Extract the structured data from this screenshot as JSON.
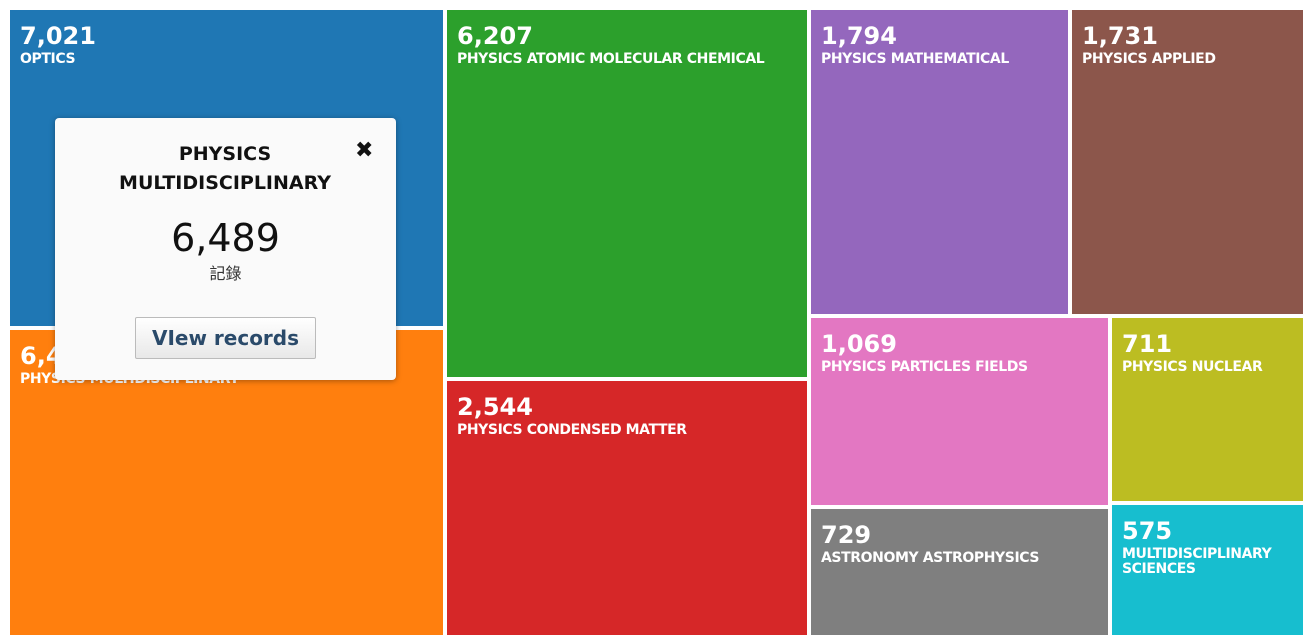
{
  "chart_data": {
    "type": "treemap",
    "categories": [
      "OPTICS",
      "PHYSICS MULTIDISCIPLINARY",
      "PHYSICS ATOMIC MOLECULAR CHEMICAL",
      "PHYSICS CONDENSED MATTER",
      "PHYSICS MATHEMATICAL",
      "PHYSICS APPLIED",
      "PHYSICS PARTICLES FIELDS",
      "PHYSICS NUCLEAR",
      "ASTRONOMY ASTROPHYSICS",
      "MULTIDISCIPLINARY SCIENCES"
    ],
    "values": [
      7021,
      6489,
      6207,
      2544,
      1794,
      1731,
      1069,
      711,
      729,
      575
    ],
    "value_labels": [
      "7,021",
      "6,489",
      "6,207",
      "2,544",
      "1,794",
      "1,731",
      "1,069",
      "711",
      "729",
      "575"
    ],
    "colors": [
      "#1f77b4",
      "#ff7f0e",
      "#2ca02c",
      "#d62728",
      "#9467bd",
      "#8c564b",
      "#e377c2",
      "#bcbd22",
      "#7f7f7f",
      "#17becf"
    ]
  },
  "tooltip": {
    "unit": "記錄",
    "button": "VIew records"
  }
}
